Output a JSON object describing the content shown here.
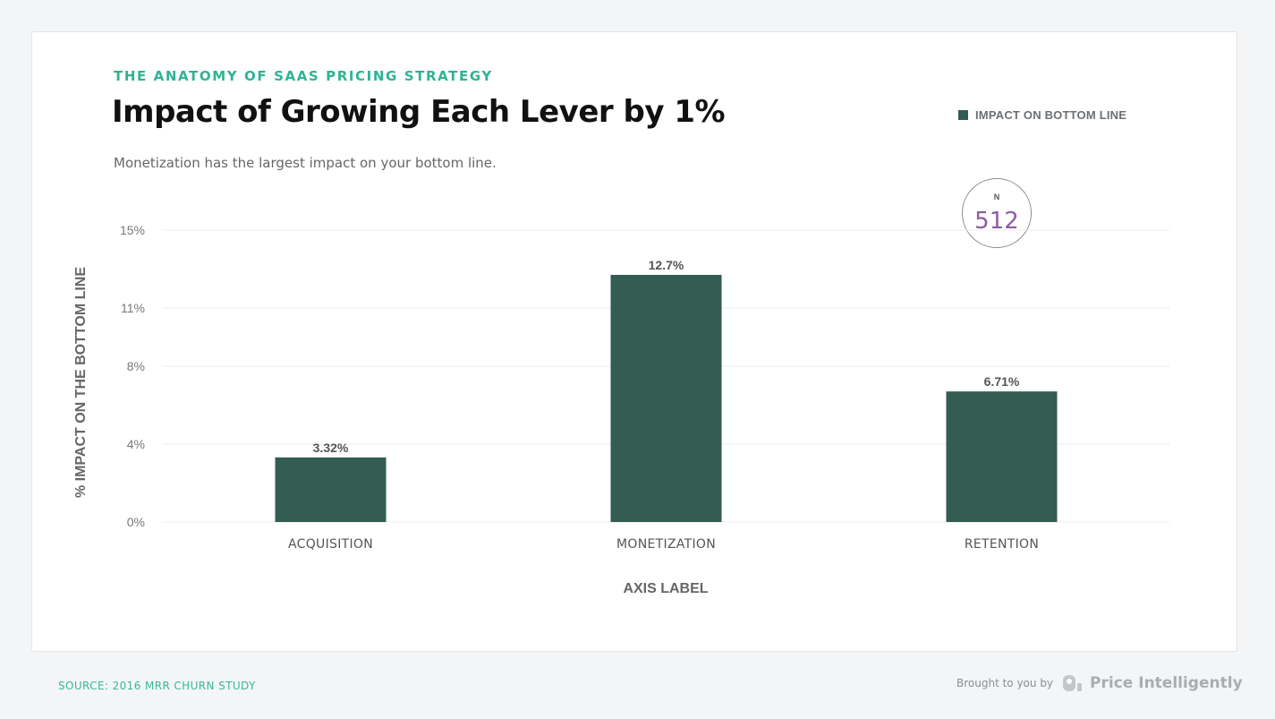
{
  "header": {
    "eyebrow": "THE ANATOMY OF SAAS PRICING STRATEGY",
    "title": "Impact of Growing Each Lever by 1%",
    "subtitle": "Monetization has the largest impact on your bottom line."
  },
  "legend": {
    "label": "IMPACT ON BOTTOM LINE"
  },
  "badge": {
    "label": "N",
    "value": "512"
  },
  "footer": {
    "source": "SOURCE: 2016 MRR CHURN STUDY",
    "brought_by": "Brought to you by",
    "brand": "Price Intelligently"
  },
  "colors": {
    "bar": "#335c52",
    "accent": "#2fb394",
    "badge_value": "#8e5c9f"
  },
  "chart_data": {
    "type": "bar",
    "title": "Impact of Growing Each Lever by 1%",
    "subtitle": "Monetization has the largest impact on your bottom line.",
    "categories": [
      "ACQUISITION",
      "MONETIZATION",
      "RETENTION"
    ],
    "series": [
      {
        "name": "IMPACT ON BOTTOM LINE",
        "values": [
          3.32,
          12.7,
          6.71
        ],
        "labels": [
          "3.32%",
          "12.7%",
          "6.71%"
        ]
      }
    ],
    "yticks": [
      {
        "value": 0,
        "label": "0%"
      },
      {
        "value": 4,
        "label": "4%"
      },
      {
        "value": 8,
        "label": "8%"
      },
      {
        "value": 11,
        "label": "11%"
      },
      {
        "value": 15,
        "label": "15%"
      }
    ],
    "ylim": [
      0,
      15
    ],
    "xlabel": "AXIS LABEL",
    "ylabel": "% IMPACT ON THE BOTTOM LINE",
    "grid": true,
    "legend_position": "top-right"
  }
}
